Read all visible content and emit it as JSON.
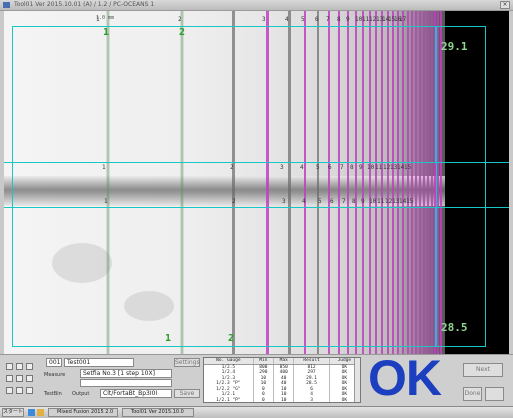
{
  "window": {
    "title": "Tool01  Ver 2015.10.01 (A) / 1.2 / PC-OCEANS 1"
  },
  "viewer": {
    "scale_text": "1.0 mm",
    "top_markers": [
      "1",
      "2",
      "3",
      "4",
      "5",
      "6",
      "7",
      "8",
      "9",
      "10",
      "11",
      "12",
      "13",
      "14",
      "15",
      "16",
      "17"
    ],
    "mid_markers": [
      "1",
      "2",
      "3",
      "4",
      "5",
      "6",
      "7",
      "8",
      "9",
      "10",
      "11",
      "12",
      "13",
      "14",
      "15"
    ],
    "green_labels": {
      "top_1": "1",
      "top_2": "2",
      "bottom_1": "1",
      "bottom_2": "2"
    },
    "value_top": "29.1",
    "value_bottom": "28.5",
    "colors": {
      "roi": "#19c6c6",
      "magenta_line": "#c040c0",
      "green_line": "#3aa03a"
    }
  },
  "panel": {
    "fields": {
      "field_a": "001",
      "field_b": "Test001",
      "field_c": "Setfia No.3 [1 step 10X]",
      "field_d": "",
      "field_e": "Clt/FortaBt_Bp3I0I"
    },
    "labels": {
      "label_a": "Measure",
      "label_b": "TestBin",
      "label_c": "Output"
    },
    "buttons": {
      "setup": "Settings",
      "save": "Save",
      "next": "Next",
      "done": "Done"
    },
    "table": {
      "headers": [
        "No. Gauge",
        "Min",
        "Max",
        "Result",
        "Judge"
      ],
      "rows": [
        [
          "1/2.5",
          "800",
          "850",
          "812",
          "OK"
        ],
        [
          "1/2.4",
          "290",
          "400",
          "297",
          "OK"
        ],
        [
          "1/2.3",
          "10",
          "40",
          "29.1",
          "OK"
        ],
        [
          "1/2.3 \"P\"",
          "10",
          "40",
          "28.5",
          "OK"
        ],
        [
          "1/2.2 \"G\"",
          "0",
          "10",
          "6",
          "OK"
        ],
        [
          "1/2.1",
          "0",
          "10",
          "4",
          "OK"
        ],
        [
          "1/2.1 \"P\"",
          "0",
          "10",
          "3",
          "OK"
        ]
      ]
    },
    "result": "OK",
    "result_color": "#1c3fbf"
  },
  "taskbar": {
    "start": "スタート",
    "tasks": [
      "Mixed Fusion 2015 2.0",
      "Tool01 Ver 2015.10.0"
    ]
  }
}
